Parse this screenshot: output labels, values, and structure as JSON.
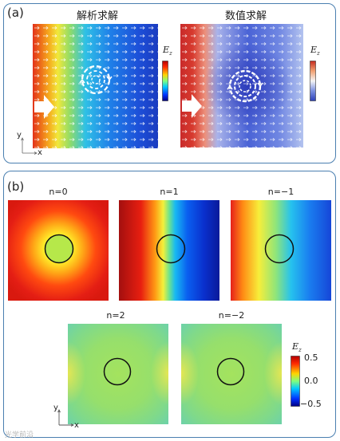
{
  "panel_a": {
    "label": "(a)",
    "left_title": "解析求解",
    "right_title": "数值求解",
    "colorbar_label": "E",
    "colorbar_sub": "z",
    "axis_y": "y",
    "axis_x": "x"
  },
  "panel_b": {
    "label": "(b)",
    "titles": [
      "n=0",
      "n=1",
      "n=−1",
      "n=2",
      "n=−2"
    ],
    "colorbar_label": "E",
    "colorbar_sub": "z",
    "colorbar_ticks": [
      "0.5",
      "0.0",
      "−0.5"
    ],
    "colorbar_values": [
      0.5,
      0.0,
      -0.5
    ],
    "axis_y": "y",
    "axis_x": "x"
  },
  "watermark": "光学前沿",
  "colors": {
    "frame": "#4a7fb0",
    "circle": "#111111"
  }
}
